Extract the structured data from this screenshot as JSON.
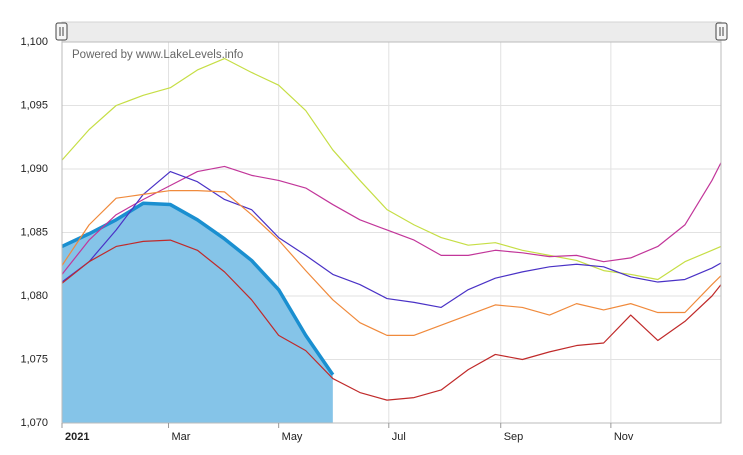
{
  "chart_data": {
    "type": "line",
    "annotation": "Powered by www.LakeLevels.info",
    "x": [
      0,
      15,
      30,
      45,
      60,
      75,
      90,
      105,
      120,
      135,
      150,
      165,
      180,
      195,
      210,
      225,
      240,
      255,
      270,
      285,
      300,
      315,
      330,
      345,
      360,
      365
    ],
    "xlim": [
      0,
      365
    ],
    "xticks": [
      {
        "value": 0,
        "label": "2021"
      },
      {
        "value": 59,
        "label": "Mar"
      },
      {
        "value": 120,
        "label": "May"
      },
      {
        "value": 181,
        "label": "Jul"
      },
      {
        "value": 243,
        "label": "Sep"
      },
      {
        "value": 304,
        "label": "Nov"
      }
    ],
    "ylim": [
      1070,
      1100
    ],
    "yticks": [
      {
        "value": 1070,
        "label": "1,070"
      },
      {
        "value": 1075,
        "label": "1,075"
      },
      {
        "value": 1080,
        "label": "1,080"
      },
      {
        "value": 1085,
        "label": "1,085"
      },
      {
        "value": 1090,
        "label": "1,090"
      },
      {
        "value": 1095,
        "label": "1,095"
      },
      {
        "value": 1100,
        "label": "1,100"
      }
    ],
    "grid": true,
    "series": [
      {
        "color": "#c6de45",
        "values": [
          1090.7,
          1093.1,
          1095.0,
          1095.8,
          1096.4,
          1097.8,
          1098.7,
          1097.6,
          1096.6,
          1094.6,
          1091.5,
          1089.1,
          1086.8,
          1085.6,
          1084.6,
          1084.0,
          1084.2,
          1083.6,
          1083.2,
          1082.8,
          1082.0,
          1081.7,
          1081.3,
          1082.7,
          1083.6,
          1083.9
        ]
      },
      {
        "color": "#c2369a",
        "values": [
          1081.7,
          1084.4,
          1086.4,
          1087.6,
          1088.7,
          1089.8,
          1090.2,
          1089.5,
          1089.1,
          1088.5,
          1087.2,
          1086.0,
          1085.2,
          1084.4,
          1083.2,
          1083.2,
          1083.6,
          1083.4,
          1083.1,
          1083.2,
          1082.7,
          1083.0,
          1083.9,
          1085.6,
          1089.1,
          1090.5
        ]
      },
      {
        "color": "#4a32c6",
        "values": [
          1081.1,
          1082.7,
          1085.2,
          1088.0,
          1089.8,
          1089.0,
          1087.6,
          1086.8,
          1084.6,
          1083.2,
          1081.7,
          1080.9,
          1079.8,
          1079.5,
          1079.1,
          1080.5,
          1081.4,
          1081.9,
          1082.3,
          1082.5,
          1082.3,
          1081.5,
          1081.1,
          1081.3,
          1082.2,
          1082.6
        ]
      },
      {
        "color": "#f08a3c",
        "values": [
          1082.4,
          1085.6,
          1087.7,
          1088.0,
          1088.3,
          1088.3,
          1088.2,
          1086.4,
          1084.4,
          1082.0,
          1079.7,
          1077.9,
          1076.9,
          1076.9,
          1077.7,
          1078.5,
          1079.3,
          1079.1,
          1078.5,
          1079.4,
          1078.9,
          1079.4,
          1078.7,
          1078.7,
          1080.9,
          1081.6
        ]
      },
      {
        "color": "#c02a2a",
        "values": [
          1081.0,
          1082.7,
          1083.9,
          1084.3,
          1084.4,
          1083.6,
          1081.9,
          1079.7,
          1076.9,
          1075.7,
          1073.5,
          1072.4,
          1071.8,
          1072.0,
          1072.6,
          1074.2,
          1075.4,
          1075.0,
          1075.6,
          1076.1,
          1076.3,
          1078.5,
          1076.5,
          1078.0,
          1080.0,
          1080.9
        ]
      },
      {
        "color": "#1a8fd0",
        "fill": "#85c4e8",
        "area": true,
        "values": [
          1083.9,
          1084.9,
          1086.0,
          1087.3,
          1087.2,
          1086.0,
          1084.5,
          1082.8,
          1080.5,
          1076.9,
          1073.8,
          null,
          null,
          null,
          null,
          null,
          null,
          null,
          null,
          null,
          null,
          null,
          null,
          null,
          null,
          null
        ]
      }
    ]
  }
}
